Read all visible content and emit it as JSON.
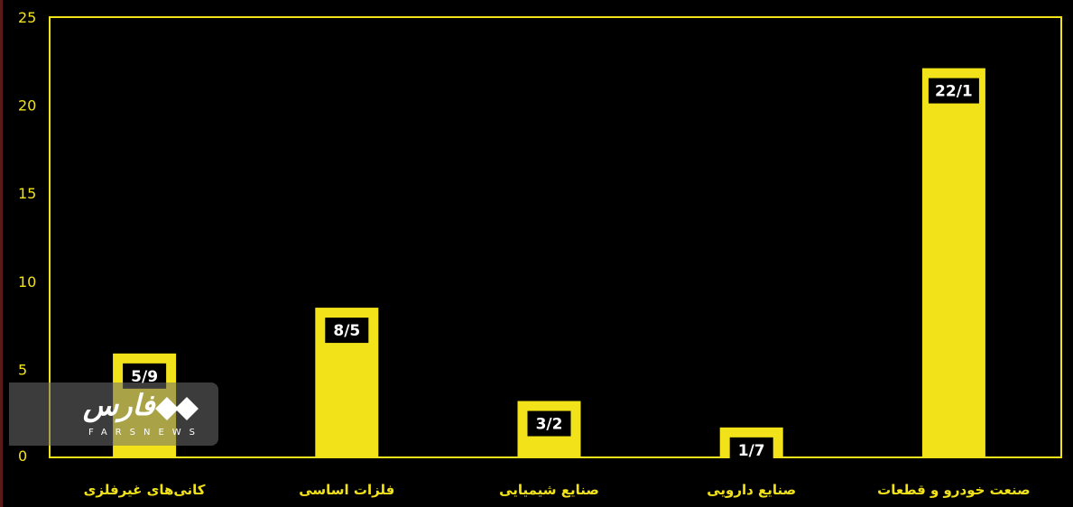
{
  "chart_data": {
    "type": "bar",
    "categories": [
      "کانی‌های غیرفلزی",
      "فلزات اساسی",
      "صنایع شیمیایی",
      "صنایع دارویی",
      "صنعت خودرو و قطعات"
    ],
    "values": [
      5.9,
      8.5,
      3.2,
      1.7,
      22.1
    ],
    "data_labels": [
      "5/9",
      "8/5",
      "3/2",
      "1/7",
      "22/1"
    ],
    "yticks": [
      "0",
      "5",
      "10",
      "15",
      "20",
      "25"
    ],
    "ylim": [
      0,
      25
    ],
    "grid": false,
    "colors": {
      "bar": "#f2e21a",
      "background": "#000000",
      "label_box": "#000000"
    }
  },
  "watermark": {
    "brand": "فارس",
    "sub": "FARSNEWS"
  }
}
